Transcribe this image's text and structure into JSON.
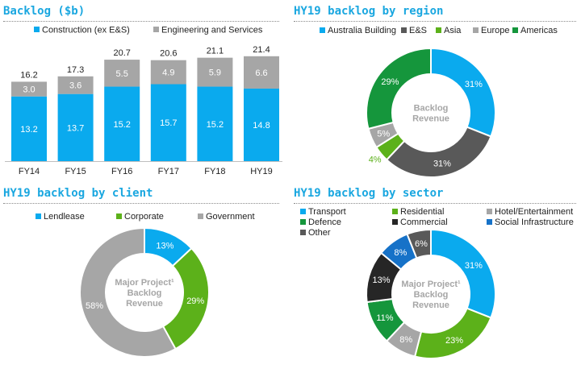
{
  "colors": {
    "title": "#1aa7e0",
    "lendlease_blue": "#0aaaee",
    "grey": "#a6a6a6",
    "dark_grey": "#595959",
    "light_green": "#5cb11a",
    "dark_green": "#15963c",
    "black": "#262626",
    "mid_blue": "#1672c8"
  },
  "chart_data": [
    {
      "type": "bar",
      "title": "Backlog ($b)",
      "categories": [
        "FY14",
        "FY15",
        "FY16",
        "FY17",
        "FY18",
        "HY19"
      ],
      "series": [
        {
          "name": "Construction (ex E&S)",
          "values": [
            13.2,
            13.7,
            15.2,
            15.7,
            15.2,
            14.8
          ],
          "color": "#0aaaee"
        },
        {
          "name": "Engineering and Services",
          "values": [
            3.0,
            3.6,
            5.5,
            4.9,
            5.9,
            6.6
          ],
          "color": "#a6a6a6"
        }
      ],
      "totals": [
        16.2,
        17.3,
        20.7,
        20.6,
        21.1,
        21.4
      ],
      "stacked": true,
      "legend": "top",
      "ylim": [
        0,
        24
      ]
    },
    {
      "type": "pie",
      "title": "HY19 backlog by region",
      "center_label": [
        "Backlog",
        "Revenue"
      ],
      "legend": "top",
      "slices": [
        {
          "name": "Australia Building",
          "value": 31,
          "label": "31%",
          "color": "#0aaaee"
        },
        {
          "name": "E&S",
          "value": 31,
          "label": "31%",
          "color": "#595959"
        },
        {
          "name": "Asia",
          "value": 4,
          "label": "4%",
          "color": "#5cb11a"
        },
        {
          "name": "Europe",
          "value": 5,
          "label": "5%",
          "color": "#a6a6a6"
        },
        {
          "name": "Americas",
          "value": 29,
          "label": "29%",
          "color": "#15963c"
        }
      ]
    },
    {
      "type": "pie",
      "title": "HY19 backlog by client",
      "center_label": [
        "Major Project¹",
        "Backlog",
        "Revenue"
      ],
      "legend": "top",
      "slices": [
        {
          "name": "Lendlease",
          "value": 13,
          "label": "13%",
          "color": "#0aaaee"
        },
        {
          "name": "Corporate",
          "value": 29,
          "label": "29%",
          "color": "#5cb11a"
        },
        {
          "name": "Government",
          "value": 58,
          "label": "58%",
          "color": "#a6a6a6"
        }
      ]
    },
    {
      "type": "pie",
      "title": "HY19 backlog by sector",
      "center_label": [
        "Major Project¹",
        "Backlog",
        "Revenue"
      ],
      "legend": "top",
      "slices": [
        {
          "name": "Transport",
          "value": 31,
          "label": "31%",
          "color": "#0aaaee"
        },
        {
          "name": "Residential",
          "value": 23,
          "label": "23%",
          "color": "#5cb11a"
        },
        {
          "name": "Hotel/Entertainment",
          "value": 8,
          "label": "8%",
          "color": "#a6a6a6"
        },
        {
          "name": "Defence",
          "value": 11,
          "label": "11%",
          "color": "#15963c"
        },
        {
          "name": "Commercial",
          "value": 13,
          "label": "13%",
          "color": "#262626"
        },
        {
          "name": "Social Infrastructure",
          "value": 8,
          "label": "8%",
          "color": "#1672c8"
        },
        {
          "name": "Other",
          "value": 6,
          "label": "6%",
          "color": "#595959"
        }
      ]
    }
  ]
}
